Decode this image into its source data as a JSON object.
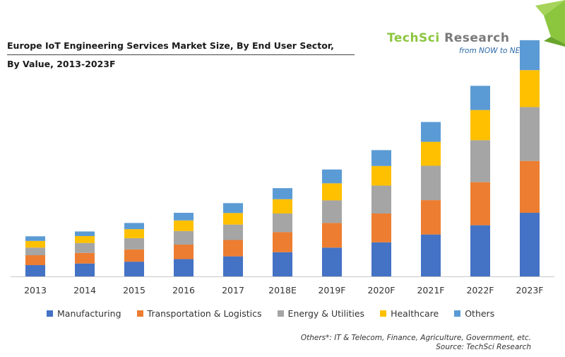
{
  "header": {
    "title_line1": "Europe IoT Engineering Services Market Size, By End User Sector,",
    "title_line2": "By Value, 2013-2023F"
  },
  "logo": {
    "brand_part1": "TechSci",
    "brand_part2": " Research",
    "tagline": "from NOW to NEXT",
    "colors": {
      "green": "#8cc63f",
      "grey": "#7a7a7a",
      "blue": "#2d6aa8"
    }
  },
  "footnote": {
    "others": "Others*: IT & Telecom, Finance, Agriculture, Government, etc.",
    "source": "Source: TechSci Research"
  },
  "chart_data": {
    "type": "bar",
    "stacked": true,
    "title": "Europe IoT Engineering Services Market Size, By End User Sector, By Value, 2013-2023F",
    "xlabel": "",
    "ylabel": "",
    "y_axis_shown": false,
    "grid": false,
    "legend_position": "bottom",
    "categories": [
      "2013",
      "2014",
      "2015",
      "2016",
      "2017",
      "2018E",
      "2019F",
      "2020F",
      "2021F",
      "2022F",
      "2023F"
    ],
    "ylim": [
      0,
      100
    ],
    "series": [
      {
        "name": "Manufacturing",
        "color": "#4472c4",
        "values": [
          4.9,
          5.6,
          6.4,
          7.5,
          8.7,
          10.5,
          12.5,
          14.8,
          18.2,
          22.2,
          27.6
        ]
      },
      {
        "name": "Transportation & Logistics",
        "color": "#ed7d31",
        "values": [
          4.3,
          4.6,
          5.3,
          6.3,
          7.1,
          8.7,
          10.7,
          12.5,
          14.9,
          18.7,
          22.5
        ]
      },
      {
        "name": "Energy & Utilities",
        "color": "#a5a5a5",
        "values": [
          3.3,
          4.3,
          4.9,
          5.9,
          6.7,
          8.1,
          9.8,
          12.1,
          14.9,
          18.2,
          23.4
        ]
      },
      {
        "name": "Healthcare",
        "color": "#ffc000",
        "values": [
          2.9,
          3.0,
          3.9,
          4.6,
          5.0,
          6.2,
          7.4,
          8.5,
          10.4,
          13.1,
          16.0
        ]
      },
      {
        "name": "Others",
        "color": "#5b9bd5",
        "values": [
          2.0,
          2.0,
          2.7,
          3.3,
          4.3,
          4.8,
          6.0,
          6.9,
          8.6,
          10.5,
          13.0
        ]
      }
    ]
  }
}
